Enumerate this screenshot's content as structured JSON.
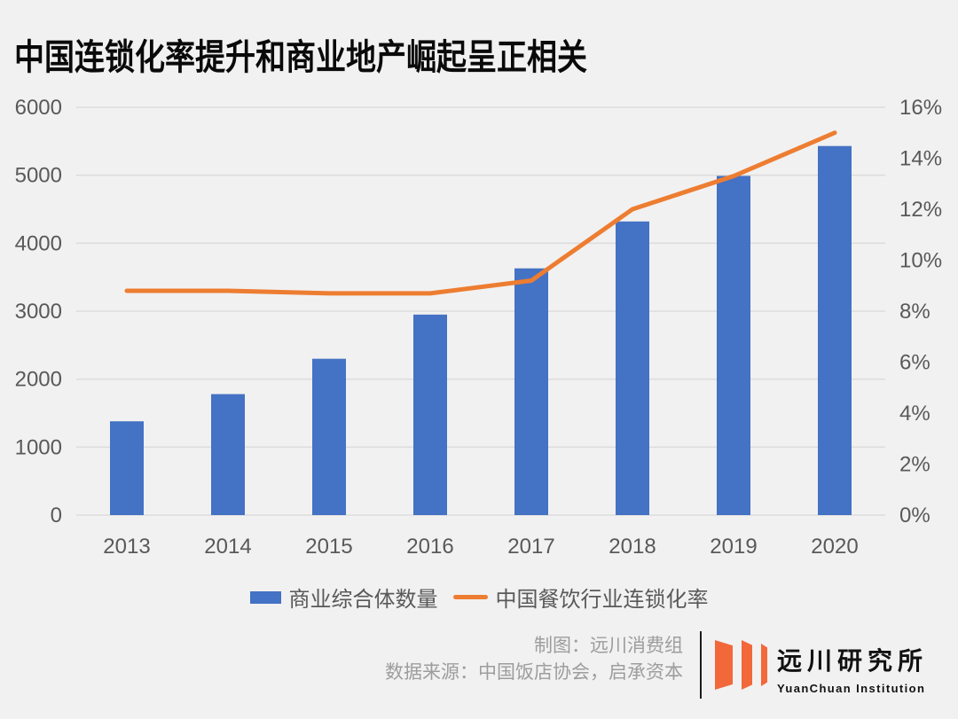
{
  "title": "中国连锁化率提升和商业地产崛起呈正相关",
  "colors": {
    "background": "#f1f1f1",
    "bar": "#4472C4",
    "line": "#ED7D31",
    "grid": "#dddddd",
    "axis_text": "#595959",
    "title_text": "#0a0a0a",
    "credits_text": "#9d9d9d",
    "logo_orange": "#F2683B"
  },
  "chart_data": {
    "type": "bar",
    "subtype": "combo-bar-line",
    "categories": [
      "2013",
      "2014",
      "2015",
      "2016",
      "2017",
      "2018",
      "2019",
      "2020"
    ],
    "series": [
      {
        "name": "商业综合体数量",
        "type": "bar",
        "axis": "left",
        "color": "#4472C4",
        "values": [
          1380,
          1780,
          2300,
          2950,
          3630,
          4320,
          4990,
          5430
        ]
      },
      {
        "name": "中国餐饮行业连锁化率",
        "type": "line",
        "axis": "right",
        "color": "#ED7D31",
        "values": [
          8.8,
          8.8,
          8.7,
          8.7,
          9.2,
          12.0,
          13.3,
          15.0
        ]
      }
    ],
    "left_axis": {
      "min": 0,
      "max": 6000,
      "step": 1000,
      "ticks": [
        "0",
        "1000",
        "2000",
        "3000",
        "4000",
        "5000",
        "6000"
      ]
    },
    "right_axis": {
      "min": 0,
      "max": 16,
      "step": 2,
      "ticks": [
        "0%",
        "2%",
        "4%",
        "6%",
        "8%",
        "10%",
        "12%",
        "14%",
        "16%"
      ]
    },
    "grid": true,
    "legend_position": "bottom"
  },
  "credits": {
    "made_by": "制图：远川消费组",
    "source": "数据来源：中国饭店协会，启承资本"
  },
  "logo": {
    "cn": "远川研究所",
    "en": "YuanChuan Institution"
  }
}
